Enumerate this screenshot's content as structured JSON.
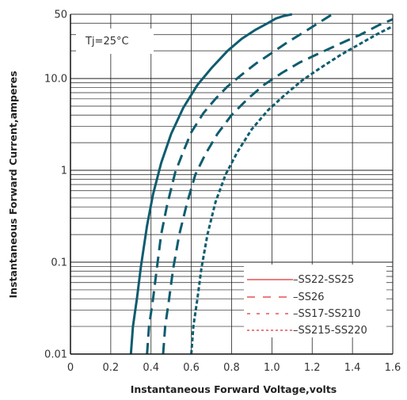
{
  "chart_data": {
    "type": "line",
    "xlabel": "Instantaneous Forward Voltage,volts",
    "ylabel": "Instantaneous Forward Current,amperes",
    "xlim": [
      0,
      1.6
    ],
    "ylim": [
      0.01,
      50
    ],
    "y_scale": "log",
    "grid": true,
    "x_ticks": [
      "0",
      "0.2",
      "0.4",
      "0.6",
      "0.8",
      "1.0",
      "1.2",
      "1.4",
      "1.6"
    ],
    "y_ticks": [
      {
        "value": 0.01,
        "label": "0.01"
      },
      {
        "value": 0.1,
        "label": "0.1"
      },
      {
        "value": 1,
        "label": "1"
      },
      {
        "value": 10,
        "label": "10.0"
      },
      {
        "value": 50,
        "label": "50"
      }
    ],
    "annotation": "Tj=25°C",
    "legend_position": "bottom-right",
    "series": [
      {
        "name": "SS22-SS25",
        "style": "solid",
        "x": [
          0.3,
          0.31,
          0.33,
          0.35,
          0.38,
          0.41,
          0.45,
          0.5,
          0.56,
          0.63,
          0.7,
          0.78,
          0.85,
          0.92,
          0.98,
          1.02,
          1.06,
          1.1
        ],
        "y": [
          0.01,
          0.02,
          0.04,
          0.09,
          0.25,
          0.55,
          1.2,
          2.5,
          4.8,
          8.5,
          13,
          20,
          27,
          34,
          40,
          45,
          48,
          50
        ]
      },
      {
        "name": "SS26",
        "style": "dash",
        "x": [
          0.38,
          0.39,
          0.41,
          0.43,
          0.45,
          0.48,
          0.52,
          0.56,
          0.6,
          0.66,
          0.72,
          0.78,
          0.85,
          0.92,
          1.0,
          1.08,
          1.16,
          1.23,
          1.3
        ],
        "y": [
          0.01,
          0.02,
          0.04,
          0.09,
          0.2,
          0.42,
          0.95,
          1.6,
          2.6,
          4.2,
          6.0,
          8.2,
          11,
          14.5,
          19,
          25,
          32,
          40,
          50
        ]
      },
      {
        "name": "SS17-SS210",
        "style": "dash",
        "x": [
          0.46,
          0.47,
          0.49,
          0.51,
          0.54,
          0.58,
          0.62,
          0.67,
          0.73,
          0.8,
          0.88,
          0.96,
          1.05,
          1.14,
          1.24,
          1.34,
          1.44,
          1.53,
          1.6
        ],
        "y": [
          0.01,
          0.02,
          0.04,
          0.085,
          0.2,
          0.45,
          0.9,
          1.5,
          2.5,
          4.0,
          6.0,
          8.5,
          11.5,
          15,
          19,
          24,
          30,
          38,
          44
        ]
      },
      {
        "name": "SS215-SS220",
        "style": "dot",
        "x": [
          0.6,
          0.61,
          0.63,
          0.65,
          0.68,
          0.72,
          0.77,
          0.83,
          0.9,
          0.98,
          1.06,
          1.15,
          1.24,
          1.34,
          1.44,
          1.53,
          1.6
        ],
        "y": [
          0.01,
          0.02,
          0.04,
          0.085,
          0.2,
          0.45,
          0.9,
          1.6,
          2.8,
          4.5,
          6.5,
          9.5,
          13,
          18,
          24,
          31,
          37
        ]
      }
    ],
    "legend": [
      "–SS22-SS25",
      "–SS26",
      "–SS17-SS210",
      "–SS215-SS220"
    ],
    "colors": {
      "curve": "#0e5c6e",
      "legend_line": "#e03030",
      "grid": "#222222",
      "axis": "#111111"
    }
  }
}
